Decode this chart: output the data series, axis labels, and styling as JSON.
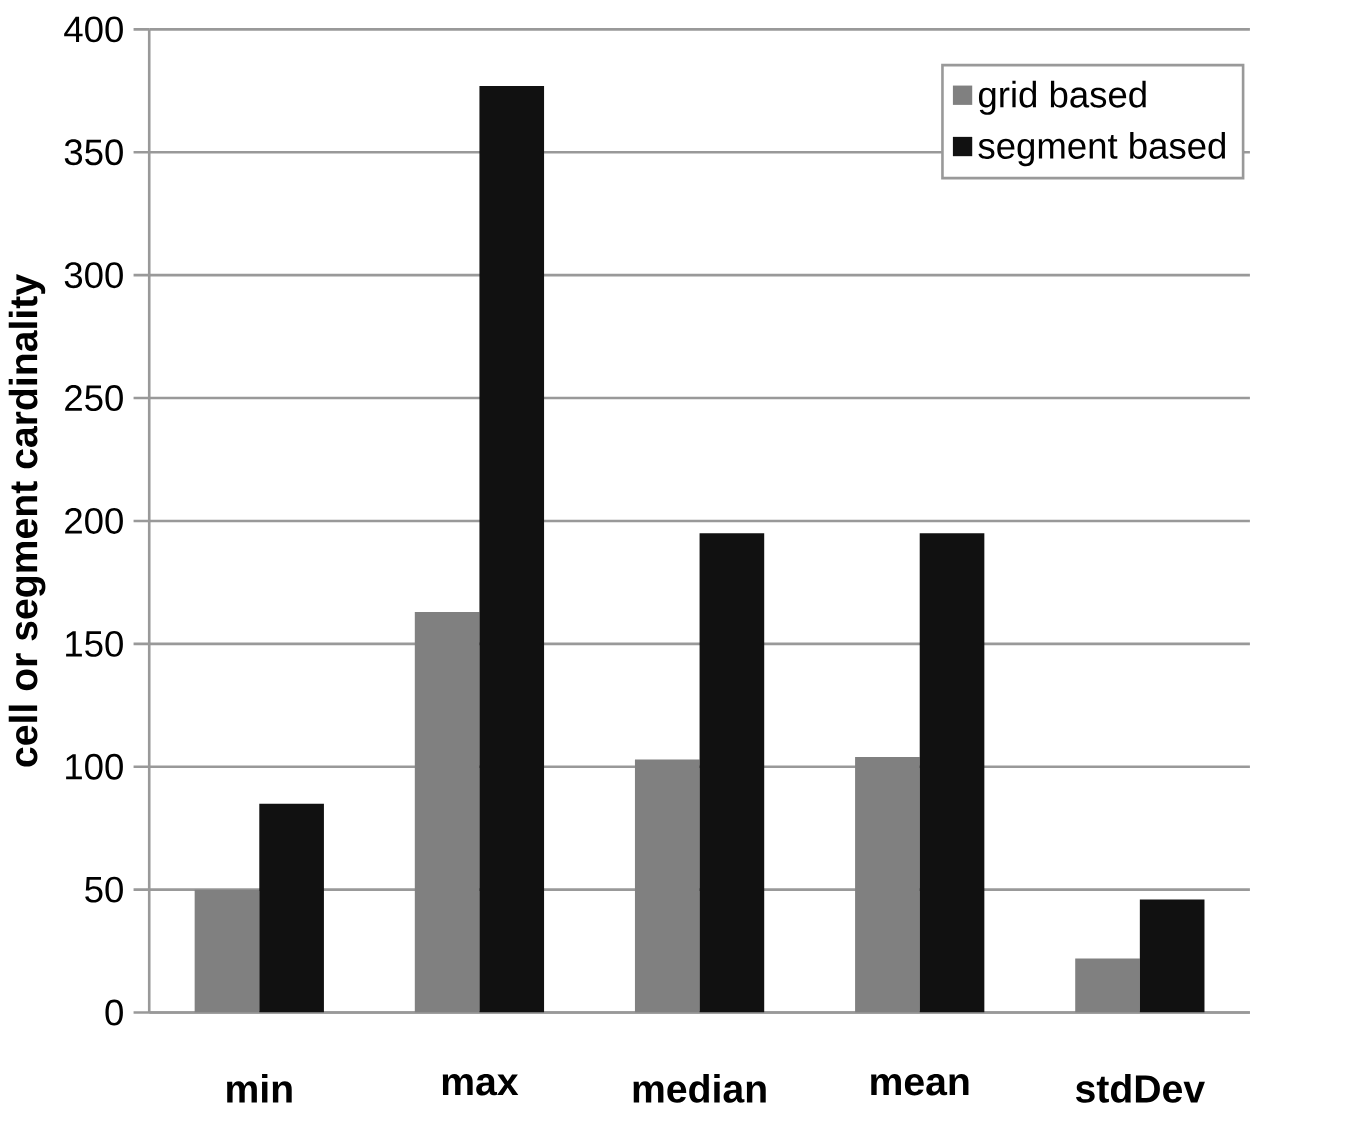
{
  "chart_data": {
    "type": "bar",
    "categories": [
      "min",
      "max",
      "median",
      "mean",
      "stdDev"
    ],
    "ylabel": "cell or segment cardinality",
    "ylim": [
      0,
      400
    ],
    "yticks": [
      0,
      50,
      100,
      150,
      200,
      250,
      300,
      350,
      400
    ],
    "grid": "y",
    "legend": "top right",
    "series": [
      {
        "name": "grid based",
        "color": "#808080",
        "values": [
          50,
          163,
          103,
          104,
          22
        ]
      },
      {
        "name": "segment based",
        "color": "#111111",
        "values": [
          85,
          377,
          195,
          195,
          46
        ]
      }
    ]
  }
}
